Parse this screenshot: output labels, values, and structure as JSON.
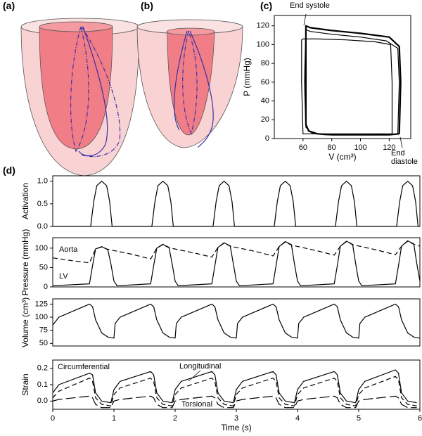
{
  "panel_labels": [
    "(a)",
    "(b)",
    "(c)",
    "(d)"
  ],
  "chart_data": [
    {
      "type": "line",
      "xlabel": "V (cm³)",
      "ylabel": "P (mmHg)",
      "xlim": [
        40,
        135
      ],
      "xticks": [
        60,
        80,
        100,
        120
      ],
      "ylim": [
        0,
        131
      ],
      "yticks": [
        0,
        20,
        40,
        60,
        80,
        100,
        120
      ],
      "annotations": [
        "End systole",
        "End diastole"
      ],
      "series": [
        {
          "color": "#000000",
          "width": 2.2,
          "dash": "solid",
          "x": [
            127,
            128,
            127,
            120,
            100,
            80,
            65,
            62,
            62,
            62,
            64,
            70,
            80,
            100,
            120,
            127
          ],
          "values": [
            5,
            60,
            98,
            108,
            112,
            115,
            118,
            120,
            60,
            15,
            8,
            5,
            4,
            4,
            4,
            5
          ]
        },
        {
          "color": "#000000",
          "width": 1.2,
          "dash": "solid",
          "x": [
            126,
            127,
            126,
            118,
            100,
            80,
            65,
            62,
            61,
            62,
            66,
            75,
            100,
            126
          ],
          "values": [
            5,
            60,
            96,
            104,
            108,
            111,
            114,
            116,
            60,
            12,
            6,
            4,
            4,
            5
          ]
        },
        {
          "color": "#000000",
          "width": 1.2,
          "dash": "solid",
          "x": [
            122,
            122,
            121,
            110,
            90,
            70,
            60,
            59,
            59,
            60,
            80,
            110,
            122
          ],
          "values": [
            5,
            60,
            100,
            103,
            105,
            106,
            106,
            105,
            60,
            5,
            5,
            5,
            5
          ]
        }
      ]
    },
    {
      "type": "line",
      "ylabel": "Activation",
      "xlim": [
        0,
        6
      ],
      "ylim": [
        0,
        1.12
      ],
      "yticks": [
        {
          "value": 0,
          "label": "0.0"
        },
        0.5,
        {
          "value": 1,
          "label": "1.0"
        }
      ],
      "annotations": [],
      "series": [
        {
          "color": "#000000",
          "width": 1.2,
          "dash": "solid",
          "x": [
            0,
            0.62,
            0.67,
            0.72,
            0.8,
            0.88,
            0.93,
            0.97,
            1.62,
            1.67,
            1.72,
            1.8,
            1.88,
            1.93,
            1.97,
            2.62,
            2.67,
            2.72,
            2.8,
            2.88,
            2.93,
            2.97,
            3.62,
            3.67,
            3.72,
            3.8,
            3.88,
            3.93,
            3.97,
            4.62,
            4.67,
            4.72,
            4.8,
            4.88,
            4.93,
            4.97,
            5.62,
            5.67,
            5.72,
            5.8,
            5.88,
            5.93,
            5.97,
            6
          ],
          "values": [
            0,
            0,
            0.55,
            0.9,
            1,
            0.9,
            0.55,
            0,
            0,
            0.55,
            0.9,
            1,
            0.9,
            0.55,
            0,
            0,
            0.55,
            0.9,
            1,
            0.9,
            0.55,
            0,
            0,
            0.55,
            0.9,
            1,
            0.9,
            0.55,
            0,
            0,
            0.55,
            0.9,
            1,
            0.9,
            0.55,
            0,
            0,
            0.55,
            0.9,
            1,
            0.9,
            0.55,
            0,
            0
          ]
        }
      ]
    },
    {
      "type": "line",
      "ylabel": "Pressure (mmHg)",
      "xlim": [
        0,
        6
      ],
      "ylim": [
        0,
        127
      ],
      "yticks": [
        0,
        50,
        100
      ],
      "annotations": [
        "Aorta",
        "LV"
      ],
      "series": [
        {
          "color": "#000000",
          "width": 1.2,
          "dash": "solid",
          "x": [
            0,
            0.6,
            0.65,
            0.7,
            0.8,
            0.9,
            0.95,
            1.0,
            1.05,
            1.6,
            1.65,
            1.7,
            1.8,
            1.9,
            1.95,
            2.0,
            2.05,
            2.6,
            2.65,
            2.7,
            2.8,
            2.9,
            2.95,
            3.0,
            3.05,
            3.6,
            3.65,
            3.7,
            3.8,
            3.9,
            3.95,
            4.0,
            4.05,
            4.6,
            4.65,
            4.7,
            4.8,
            4.9,
            4.95,
            5.0,
            5.05,
            5.6,
            5.65,
            5.7,
            5.8,
            5.9,
            5.95,
            6.0
          ],
          "values": [
            3,
            8,
            55,
            98,
            104,
            96,
            60,
            15,
            3,
            8,
            55,
            100,
            110,
            102,
            60,
            15,
            3,
            8,
            55,
            102,
            114,
            106,
            60,
            15,
            3,
            8,
            55,
            104,
            117,
            109,
            60,
            15,
            3,
            8,
            55,
            105,
            118,
            110,
            60,
            15,
            3,
            8,
            55,
            105,
            119,
            111,
            60,
            15
          ]
        },
        {
          "color": "#000000",
          "width": 1.2,
          "dash": "dashed",
          "x": [
            0,
            0.3,
            0.6,
            0.7,
            0.8,
            0.9,
            1.3,
            1.6,
            1.7,
            1.8,
            1.9,
            2.3,
            2.6,
            2.7,
            2.8,
            2.9,
            3.3,
            3.6,
            3.7,
            3.8,
            3.9,
            4.3,
            4.6,
            4.7,
            4.8,
            4.9,
            5.3,
            5.6,
            5.7,
            5.8,
            5.9,
            6.0
          ],
          "values": [
            75,
            68,
            62,
            98,
            103,
            97,
            84,
            72,
            100,
            109,
            101,
            88,
            77,
            102,
            113,
            105,
            92,
            80,
            104,
            116,
            108,
            94,
            82,
            105,
            117,
            109,
            95,
            83,
            105,
            118,
            110,
            105
          ]
        }
      ]
    },
    {
      "type": "line",
      "ylabel": "Volume (cm³)",
      "xlim": [
        0,
        6
      ],
      "ylim": [
        45,
        135
      ],
      "yticks": [
        50,
        75,
        100,
        125
      ],
      "annotations": [],
      "series": [
        {
          "color": "#000000",
          "width": 1.2,
          "dash": "solid",
          "x": [
            0,
            0.1,
            0.6,
            0.65,
            0.7,
            0.8,
            0.9,
            1.0,
            1.02,
            1.1,
            1.6,
            1.65,
            1.7,
            1.8,
            1.9,
            2.0,
            2.02,
            2.1,
            2.6,
            2.65,
            2.7,
            2.8,
            2.9,
            3.0,
            3.02,
            3.1,
            3.6,
            3.65,
            3.7,
            3.8,
            3.9,
            4.0,
            4.02,
            4.1,
            4.6,
            4.65,
            4.7,
            4.8,
            4.9,
            5.0,
            5.02,
            5.1,
            5.6,
            5.65,
            5.7,
            5.8,
            5.9,
            6.0
          ],
          "values": [
            85,
            100,
            125,
            120,
            95,
            70,
            62,
            60,
            88,
            100,
            125,
            120,
            95,
            70,
            62,
            60,
            88,
            100,
            125,
            120,
            95,
            70,
            62,
            60,
            88,
            100,
            125,
            120,
            95,
            70,
            62,
            60,
            88,
            100,
            125,
            120,
            95,
            70,
            62,
            60,
            88,
            100,
            125,
            120,
            95,
            70,
            62,
            60
          ]
        }
      ]
    },
    {
      "type": "line",
      "ylabel": "Strain",
      "xlabel": "Time (s)",
      "xlim": [
        0,
        6
      ],
      "xticks": [
        0,
        1,
        2,
        3,
        4,
        5,
        6
      ],
      "ylim": [
        -0.05,
        0.25
      ],
      "yticks": [
        {
          "value": 0,
          "label": "0.0"
        },
        0.1,
        0.2
      ],
      "annotations": [
        "Circumferential",
        "Longitudinal",
        "Torsional"
      ],
      "series": [
        {
          "color": "#000000",
          "width": 1.2,
          "dash": "solid",
          "x": [
            0,
            0.1,
            0.6,
            0.65,
            0.7,
            0.8,
            0.95,
            1.0,
            1.1,
            1.6,
            1.65,
            1.7,
            1.8,
            1.95,
            2.0,
            2.1,
            2.6,
            2.65,
            2.7,
            2.8,
            2.95,
            3.0,
            3.1,
            3.6,
            3.65,
            3.7,
            3.8,
            3.95,
            4.0,
            4.1,
            4.6,
            4.65,
            4.7,
            4.8,
            4.95,
            5.0,
            5.1,
            5.6,
            5.65,
            5.7,
            5.8,
            5.95
          ],
          "values": [
            0.05,
            0.1,
            0.17,
            0.16,
            0.05,
            0,
            -0.01,
            0.07,
            0.12,
            0.18,
            0.16,
            0.05,
            0,
            -0.01,
            0.07,
            0.12,
            0.18,
            0.16,
            0.05,
            0,
            -0.01,
            0.07,
            0.12,
            0.18,
            0.16,
            0.05,
            0,
            -0.01,
            0.07,
            0.12,
            0.18,
            0.16,
            0.05,
            0,
            -0.01,
            0.07,
            0.12,
            0.19,
            0.17,
            0.05,
            0,
            -0.01
          ]
        },
        {
          "color": "#000000",
          "width": 1.2,
          "dash": "dashed",
          "x": [
            0,
            0.1,
            0.6,
            0.65,
            0.7,
            0.8,
            0.95,
            1.0,
            1.1,
            1.6,
            1.65,
            1.7,
            1.8,
            1.95,
            2.0,
            2.1,
            2.6,
            2.65,
            2.7,
            2.8,
            2.95,
            3.0,
            3.1,
            3.6,
            3.65,
            3.7,
            3.8,
            3.95,
            4.0,
            4.1,
            4.6,
            4.65,
            4.7,
            4.8,
            4.95,
            5.0,
            5.1,
            5.6,
            5.65,
            5.7,
            5.8,
            5.95
          ],
          "values": [
            0.02,
            0.06,
            0.14,
            0.12,
            0.02,
            -0.02,
            -0.03,
            0.04,
            0.08,
            0.14,
            0.12,
            0.02,
            -0.02,
            -0.03,
            0.04,
            0.08,
            0.14,
            0.12,
            0.02,
            -0.02,
            -0.03,
            0.04,
            0.08,
            0.14,
            0.12,
            0.02,
            -0.02,
            -0.03,
            0.04,
            0.08,
            0.14,
            0.12,
            0.02,
            -0.02,
            -0.03,
            0.04,
            0.08,
            0.15,
            0.13,
            0.02,
            -0.02,
            -0.03
          ]
        },
        {
          "color": "#000000",
          "width": 1.2,
          "dash": "longdash",
          "x": [
            0,
            0.1,
            0.6,
            0.65,
            0.7,
            0.8,
            0.95,
            1.0,
            1.1,
            1.6,
            1.65,
            1.7,
            1.8,
            1.95,
            2.0,
            2.1,
            2.6,
            2.65,
            2.7,
            2.8,
            2.95,
            3.0,
            3.1,
            3.6,
            3.65,
            3.7,
            3.8,
            3.95,
            4.0,
            4.1,
            4.6,
            4.65,
            4.7,
            4.8,
            4.95,
            5.0,
            5.1,
            5.6,
            5.65,
            5.7,
            5.8,
            5.95
          ],
          "values": [
            0,
            0.01,
            0.03,
            0.02,
            -0.02,
            -0.04,
            -0.04,
            0,
            0.01,
            0.03,
            0.02,
            -0.02,
            -0.04,
            -0.04,
            0,
            0.01,
            0.03,
            0.02,
            -0.02,
            -0.04,
            -0.04,
            0,
            0.01,
            0.03,
            0.02,
            -0.02,
            -0.04,
            -0.04,
            0,
            0.01,
            0.03,
            0.02,
            -0.02,
            -0.04,
            -0.04,
            0,
            0.01,
            0.03,
            0.02,
            -0.02,
            -0.04,
            -0.04
          ]
        }
      ]
    }
  ]
}
